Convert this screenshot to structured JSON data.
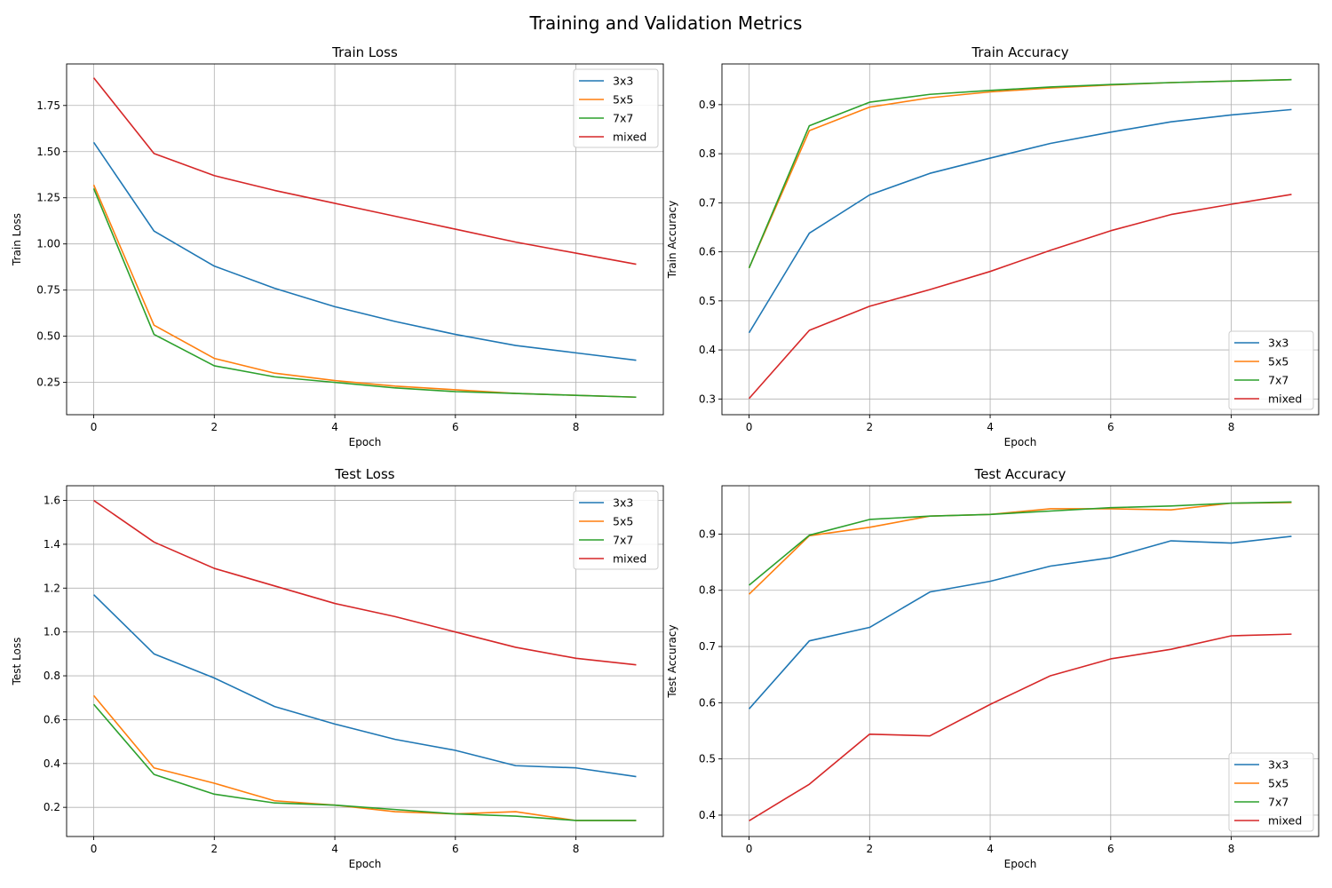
{
  "figure": {
    "title": "Training and Validation Metrics"
  },
  "colors": {
    "3x3": "#1f77b4",
    "5x5": "#ff7f0e",
    "7x7": "#2ca02c",
    "mixed": "#d62728"
  },
  "chart_data": [
    {
      "type": "line",
      "title": "Train Loss",
      "xlabel": "Epoch",
      "ylabel": "Train Loss",
      "x": [
        0,
        1,
        2,
        3,
        4,
        5,
        6,
        7,
        8,
        9
      ],
      "xlim": [
        -0.45,
        9.45
      ],
      "ylim": [
        0.075,
        1.975
      ],
      "xticks": [
        0,
        2,
        4,
        6,
        8
      ],
      "yticks": [
        0.25,
        0.5,
        0.75,
        1.0,
        1.25,
        1.5,
        1.75
      ],
      "ytick_labels": [
        "0.25",
        "0.50",
        "0.75",
        "1.00",
        "1.25",
        "1.50",
        "1.75"
      ],
      "grid": true,
      "legend": "top-right",
      "series": [
        {
          "name": "3x3",
          "values": [
            1.55,
            1.07,
            0.88,
            0.76,
            0.66,
            0.58,
            0.51,
            0.45,
            0.41,
            0.37
          ]
        },
        {
          "name": "5x5",
          "values": [
            1.32,
            0.56,
            0.38,
            0.3,
            0.26,
            0.23,
            0.21,
            0.19,
            0.18,
            0.17
          ]
        },
        {
          "name": "7x7",
          "values": [
            1.3,
            0.51,
            0.34,
            0.28,
            0.25,
            0.22,
            0.2,
            0.19,
            0.18,
            0.17
          ]
        },
        {
          "name": "mixed",
          "values": [
            1.9,
            1.49,
            1.37,
            1.29,
            1.22,
            1.15,
            1.08,
            1.01,
            0.95,
            0.89
          ]
        }
      ]
    },
    {
      "type": "line",
      "title": "Train Accuracy",
      "xlabel": "Epoch",
      "ylabel": "Train Accuracy",
      "x": [
        0,
        1,
        2,
        3,
        4,
        5,
        6,
        7,
        8,
        9
      ],
      "xlim": [
        -0.45,
        9.45
      ],
      "ylim": [
        0.268,
        0.983
      ],
      "xticks": [
        0,
        2,
        4,
        6,
        8
      ],
      "yticks": [
        0.3,
        0.4,
        0.5,
        0.6,
        0.7,
        0.8,
        0.9
      ],
      "ytick_labels": [
        "0.3",
        "0.4",
        "0.5",
        "0.6",
        "0.7",
        "0.8",
        "0.9"
      ],
      "grid": true,
      "legend": "bottom-right",
      "series": [
        {
          "name": "3x3",
          "values": [
            0.435,
            0.638,
            0.716,
            0.76,
            0.791,
            0.821,
            0.844,
            0.865,
            0.879,
            0.89
          ]
        },
        {
          "name": "5x5",
          "values": [
            0.567,
            0.847,
            0.895,
            0.914,
            0.926,
            0.934,
            0.94,
            0.945,
            0.948,
            0.951
          ]
        },
        {
          "name": "7x7",
          "values": [
            0.567,
            0.857,
            0.905,
            0.921,
            0.929,
            0.936,
            0.941,
            0.945,
            0.948,
            0.951
          ]
        },
        {
          "name": "mixed",
          "values": [
            0.301,
            0.44,
            0.489,
            0.523,
            0.56,
            0.603,
            0.643,
            0.676,
            0.697,
            0.717
          ]
        }
      ]
    },
    {
      "type": "line",
      "title": "Test Loss",
      "xlabel": "Epoch",
      "ylabel": "Test Loss",
      "x": [
        0,
        1,
        2,
        3,
        4,
        5,
        6,
        7,
        8,
        9
      ],
      "xlim": [
        -0.45,
        9.45
      ],
      "ylim": [
        0.067,
        1.667
      ],
      "xticks": [
        0,
        2,
        4,
        6,
        8
      ],
      "yticks": [
        0.2,
        0.4,
        0.6,
        0.8,
        1.0,
        1.2,
        1.4,
        1.6
      ],
      "ytick_labels": [
        "0.2",
        "0.4",
        "0.6",
        "0.8",
        "1.0",
        "1.2",
        "1.4",
        "1.6"
      ],
      "grid": true,
      "legend": "top-right",
      "series": [
        {
          "name": "3x3",
          "values": [
            1.17,
            0.9,
            0.79,
            0.66,
            0.58,
            0.51,
            0.46,
            0.39,
            0.38,
            0.34
          ]
        },
        {
          "name": "5x5",
          "values": [
            0.71,
            0.38,
            0.31,
            0.23,
            0.21,
            0.18,
            0.17,
            0.18,
            0.14,
            0.14
          ]
        },
        {
          "name": "7x7",
          "values": [
            0.67,
            0.35,
            0.26,
            0.22,
            0.21,
            0.19,
            0.17,
            0.16,
            0.14,
            0.14
          ]
        },
        {
          "name": "mixed",
          "values": [
            1.6,
            1.41,
            1.29,
            1.21,
            1.13,
            1.07,
            1.0,
            0.93,
            0.88,
            0.85
          ]
        }
      ]
    },
    {
      "type": "line",
      "title": "Test Accuracy",
      "xlabel": "Epoch",
      "ylabel": "Test Accuracy",
      "x": [
        0,
        1,
        2,
        3,
        4,
        5,
        6,
        7,
        8,
        9
      ],
      "xlim": [
        -0.45,
        9.45
      ],
      "ylim": [
        0.362,
        0.986
      ],
      "xticks": [
        0,
        2,
        4,
        6,
        8
      ],
      "yticks": [
        0.4,
        0.5,
        0.6,
        0.7,
        0.8,
        0.9
      ],
      "ytick_labels": [
        "0.4",
        "0.5",
        "0.6",
        "0.7",
        "0.8",
        "0.9"
      ],
      "grid": true,
      "legend": "bottom-right",
      "series": [
        {
          "name": "3x3",
          "values": [
            0.589,
            0.71,
            0.734,
            0.797,
            0.816,
            0.843,
            0.858,
            0.888,
            0.884,
            0.896
          ]
        },
        {
          "name": "5x5",
          "values": [
            0.793,
            0.897,
            0.912,
            0.932,
            0.935,
            0.945,
            0.945,
            0.943,
            0.955,
            0.956
          ]
        },
        {
          "name": "7x7",
          "values": [
            0.809,
            0.898,
            0.926,
            0.932,
            0.935,
            0.941,
            0.947,
            0.95,
            0.955,
            0.957
          ]
        },
        {
          "name": "mixed",
          "values": [
            0.39,
            0.455,
            0.544,
            0.541,
            0.597,
            0.648,
            0.678,
            0.695,
            0.719,
            0.722
          ]
        }
      ]
    }
  ]
}
